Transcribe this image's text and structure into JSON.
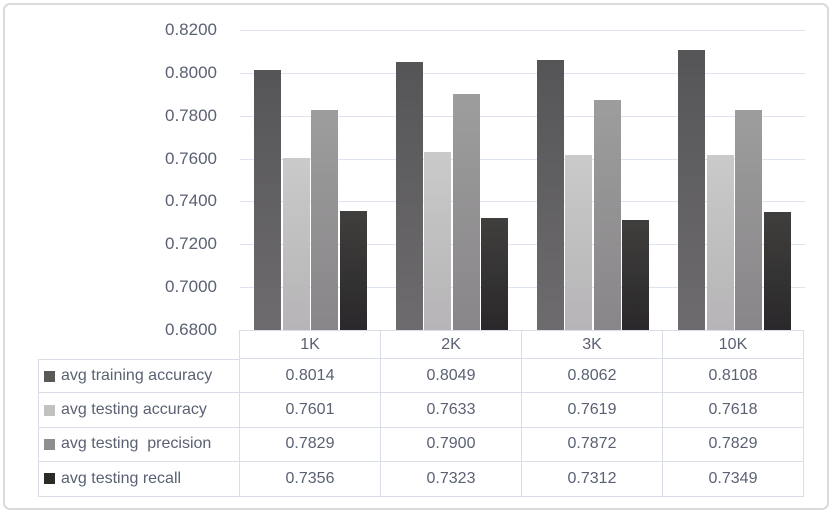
{
  "chart_data": {
    "type": "bar",
    "title": "",
    "xlabel": "",
    "ylabel": "",
    "categories": [
      "1K",
      "2K",
      "3K",
      "10K"
    ],
    "series": [
      {
        "name": "avg training accuracy",
        "values": [
          0.8014,
          0.8049,
          0.8062,
          0.8108
        ],
        "key_color": "#595959"
      },
      {
        "name": "avg testing accuracy",
        "values": [
          0.7601,
          0.7633,
          0.7619,
          0.7618
        ],
        "key_color": "#c2c1c1"
      },
      {
        "name": "avg testing  precision",
        "values": [
          0.7829,
          0.79,
          0.7872,
          0.7829
        ],
        "key_color": "#8f8e8e"
      },
      {
        "name": "avg testing recall",
        "values": [
          0.7356,
          0.7323,
          0.7312,
          0.7349
        ],
        "key_color": "#2b2a29"
      }
    ],
    "ylim": [
      0.68,
      0.82
    ],
    "ytick_step": 0.02,
    "ytick_labels": [
      "0.8200",
      "0.8000",
      "0.7800",
      "0.7600",
      "0.7400",
      "0.7200",
      "0.7000",
      "0.6800"
    ],
    "grid": "horizontal-only",
    "legend_position": "data-table-row-headers",
    "value_decimals": 4
  },
  "colors": {
    "background": "#ffffff",
    "frame_border": "#dadada",
    "axis_text": "#5a6173",
    "gridline": "#dde4ee",
    "table_border": "#d9dee6",
    "series_bar_gradients": [
      [
        "#555557",
        "#6e6b6e"
      ],
      [
        "#cacaca",
        "#b6b4b6"
      ],
      [
        "#9d9d9d",
        "#898689"
      ],
      [
        "#403f3d",
        "#2a282a"
      ]
    ]
  }
}
